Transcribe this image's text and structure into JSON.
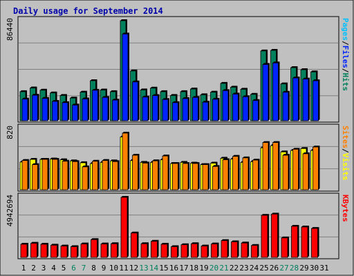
{
  "colors": {
    "outer_bg": "#C0C0C0",
    "panel_bg": "#C0C0C0",
    "border": "#000000",
    "grid": "#808080",
    "title": "#0000AA",
    "hits": "#00805C",
    "files": "#0024FF",
    "pages": "#00C0FF",
    "visits": "#FFFF00",
    "sites": "#FF8000",
    "kbytes": "#FF0000",
    "weekday_label": "#000000",
    "weekend_label": "#00805C"
  },
  "chart_data": {
    "title": "Daily usage for September 2014",
    "days": [
      "1",
      "2",
      "3",
      "4",
      "5",
      "6",
      "7",
      "8",
      "9",
      "10",
      "11",
      "12",
      "13",
      "14",
      "15",
      "16",
      "17",
      "18",
      "19",
      "20",
      "21",
      "22",
      "23",
      "24",
      "25",
      "26",
      "27",
      "28",
      "29",
      "30",
      "31"
    ],
    "weekend_days": [
      "6",
      "7",
      "13",
      "14",
      "20",
      "21",
      "27",
      "28"
    ],
    "panels": [
      {
        "type": "bar",
        "ymax_label": "86440",
        "ymax": 86440,
        "legend": [
          {
            "text": "Hits",
            "color_key": "hits"
          },
          {
            "text": "/",
            "color_key": "border"
          },
          {
            "text": "Files",
            "color_key": "files"
          },
          {
            "text": "/",
            "color_key": "border"
          },
          {
            "text": "Pages",
            "color_key": "pages"
          }
        ],
        "series": [
          {
            "name": "Hits",
            "color_key": "hits",
            "values": [
              25100,
              28300,
              26400,
              24000,
              21800,
              19600,
              24700,
              34600,
              26500,
              25100,
              86440,
              43000,
              26600,
              28200,
              25100,
              21800,
              25100,
              27400,
              22400,
              24700,
              32300,
              29000,
              27200,
              22800,
              60300,
              60800,
              31800,
              45900,
              44100,
              42200,
              0
            ]
          },
          {
            "name": "Files",
            "color_key": "files",
            "values": [
              22900,
              26200,
              23500,
              20900,
              19800,
              17700,
              23000,
              30500,
              24300,
              22000,
              79100,
              37700,
              24600,
              25900,
              22500,
              19800,
              23300,
              24300,
              20200,
              22700,
              30200,
              27200,
              24900,
              21600,
              52800,
              54100,
              28800,
              41100,
              40200,
              38700,
              0
            ]
          }
        ]
      },
      {
        "type": "bar",
        "ymax_label": "820",
        "ymax": 820,
        "legend": [
          {
            "text": "Visits",
            "color_key": "visits"
          },
          {
            "text": "/",
            "color_key": "border"
          },
          {
            "text": "Sites",
            "color_key": "sites"
          }
        ],
        "series": [
          {
            "name": "Visits",
            "color_key": "visits",
            "values": [
              370,
              405,
              405,
              410,
              400,
              385,
              360,
              350,
              365,
              385,
              705,
              390,
              365,
              365,
              400,
              350,
              365,
              355,
              335,
              355,
              420,
              410,
              365,
              375,
              560,
              590,
              505,
              525,
              550,
              525,
              0
            ]
          },
          {
            "name": "Sites",
            "color_key": "sites",
            "values": [
              455,
              400,
              470,
              470,
              445,
              440,
              370,
              445,
              455,
              440,
              820,
              525,
              420,
              450,
              515,
              415,
              415,
              415,
              400,
              375,
              465,
              510,
              490,
              460,
              695,
              695,
              525,
              605,
              545,
              635,
              0
            ]
          }
        ]
      },
      {
        "type": "bar",
        "ymax_label": "4942694",
        "ymax": 4942694,
        "legend": [
          {
            "text": "KBytes",
            "color_key": "kbytes"
          }
        ],
        "series": [
          {
            "name": "KBytes",
            "color_key": "kbytes",
            "values": [
              1080000,
              1160000,
              1080000,
              1000000,
              930000,
              880000,
              1100000,
              1460000,
              1100000,
              1120000,
              4942694,
              2000000,
              1120000,
              1320000,
              1080000,
              880000,
              1040000,
              1120000,
              930000,
              1100000,
              1380000,
              1280000,
              1180000,
              980000,
              3460000,
              3560000,
              1600000,
              2560000,
              2500000,
              2380000,
              0
            ]
          }
        ]
      }
    ]
  }
}
